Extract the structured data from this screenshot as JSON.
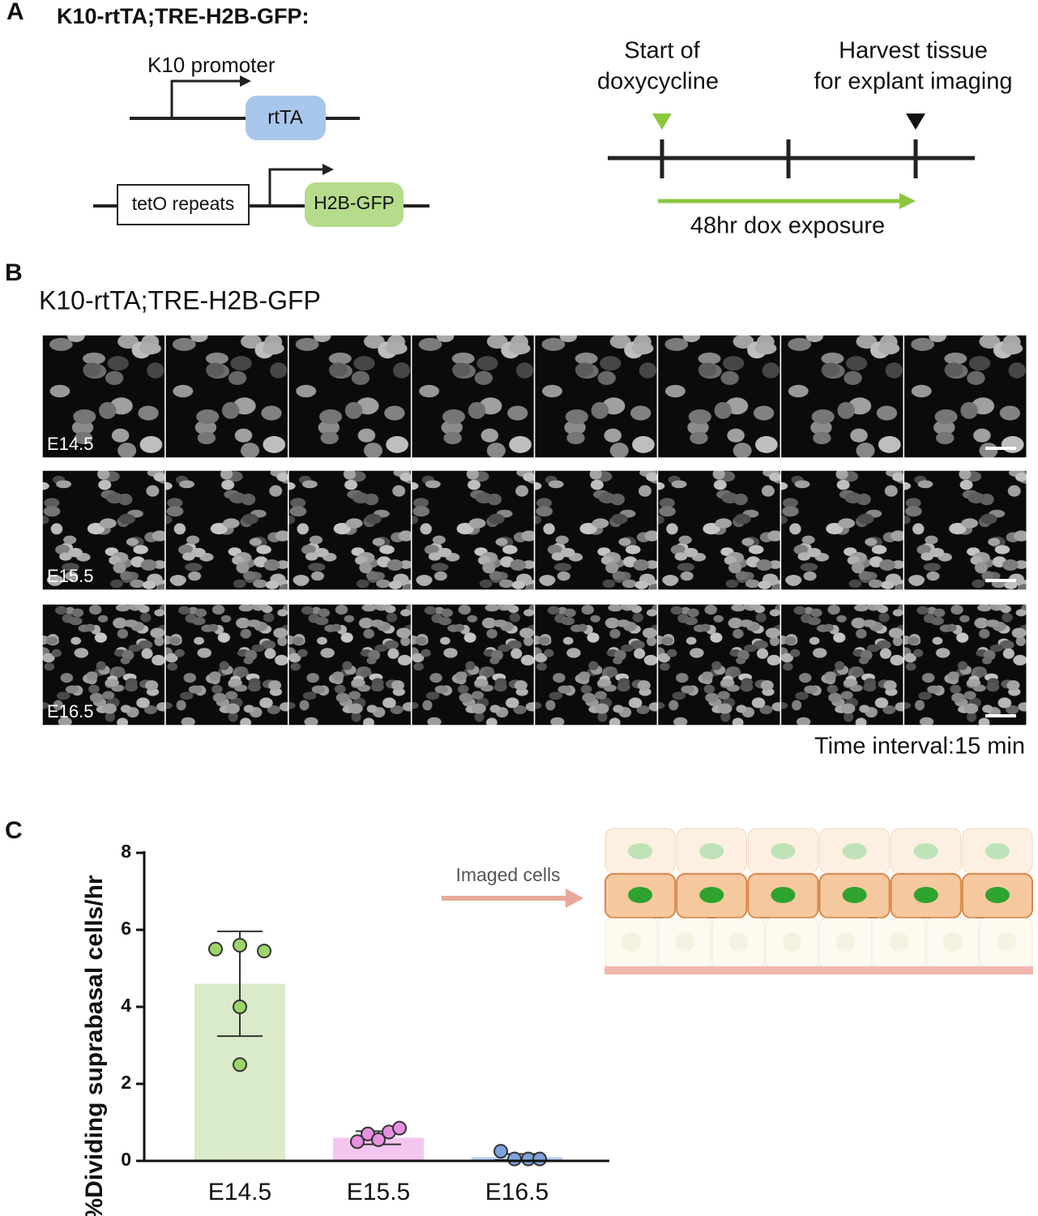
{
  "panel_a": {
    "label": "A",
    "title": "K10-rtTA;TRE-H2B-GFP:",
    "promoter": "K10 promoter",
    "rtta": "rtTA",
    "teto": "tetO repeats",
    "h2b": "H2B-GFP",
    "start": [
      "Start of",
      "doxycycline"
    ],
    "harvest": [
      "Harvest tissue",
      "for explant imaging"
    ],
    "exposure": "48hr dox exposure"
  },
  "panel_b": {
    "label": "B",
    "title": "K10-rtTA;TRE-H2B-GFP",
    "rows": [
      "E14.5",
      "E15.5",
      "E16.5"
    ],
    "interval": "Time interval:15 min"
  },
  "panel_c": {
    "label": "C",
    "annotation": "Imaged cells"
  },
  "chart_data": {
    "type": "bar",
    "y_label": "%Dividing suprabasal cells/hr",
    "categories": [
      "E14.5",
      "E15.5",
      "E16.5"
    ],
    "values": [
      4.6,
      0.6,
      0.1
    ],
    "errors": [
      1.36,
      0.17,
      0.08
    ],
    "points": [
      [
        5.5,
        5.6,
        5.45,
        4.0,
        2.5
      ],
      [
        0.5,
        0.7,
        0.55,
        0.75,
        0.85
      ],
      [
        0.25,
        0.05,
        0.05,
        0.05
      ]
    ],
    "colors": [
      "#d9ebc9",
      "#f3c6f0",
      "#bcd0ee"
    ],
    "point_colors": [
      "#9fd46b",
      "#e890e2",
      "#7fa3dc"
    ],
    "ylim": [
      0,
      8
    ],
    "yticks": [
      0,
      2,
      4,
      6,
      8
    ]
  }
}
